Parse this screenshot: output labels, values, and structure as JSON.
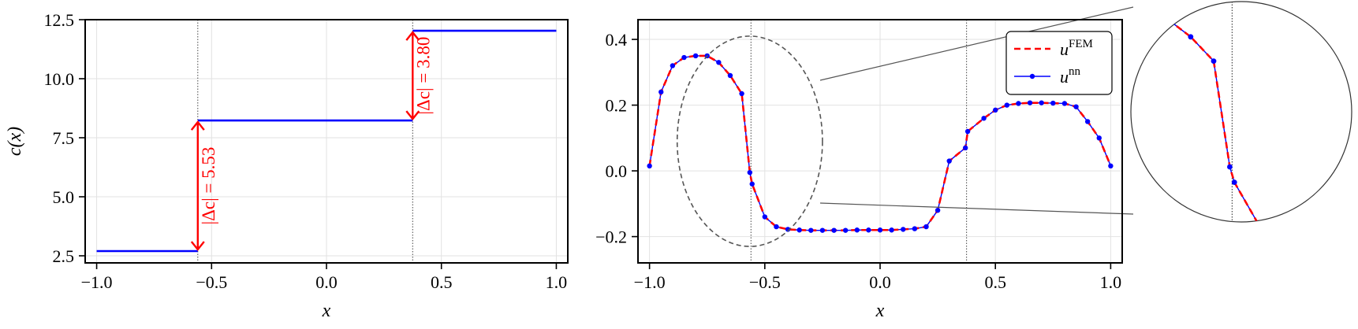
{
  "chart_data": [
    {
      "type": "line",
      "panel": "left",
      "xlabel": "x",
      "ylabel": "c(x)",
      "xlim": [
        -1.05,
        1.05
      ],
      "ylim": [
        2.2,
        12.5
      ],
      "xticks": [
        -1.0,
        -0.5,
        0.0,
        0.5,
        1.0
      ],
      "xtick_labels": [
        "−1.0",
        "−0.5",
        "0.0",
        "0.5",
        "1.0"
      ],
      "yticks": [
        2.5,
        5.0,
        7.5,
        10.0,
        12.5
      ],
      "ytick_labels": [
        "2.5",
        "5.0",
        "7.5",
        "10.0",
        "12.5"
      ],
      "grid": true,
      "interfaces": [
        -0.56,
        0.375
      ],
      "series": [
        {
          "color": "#0000ff",
          "segments": [
            {
              "x": [
                -1.0,
                -0.56
              ],
              "y": [
                2.7,
                2.7
              ]
            },
            {
              "x": [
                -0.56,
                0.375
              ],
              "y": [
                8.23,
                8.23
              ]
            },
            {
              "x": [
                0.375,
                1.0
              ],
              "y": [
                12.03,
                12.03
              ]
            }
          ]
        }
      ],
      "annotations": [
        {
          "text": "|Δc| = 5.53",
          "x": -0.56,
          "y_from": 2.7,
          "y_to": 8.23,
          "color": "#ff0000"
        },
        {
          "text": "|Δc| = 3.80",
          "x": 0.375,
          "y_from": 8.23,
          "y_to": 12.03,
          "color": "#ff0000"
        }
      ]
    },
    {
      "type": "line",
      "panel": "right",
      "xlabel": "x",
      "ylabel": "",
      "xlim": [
        -1.05,
        1.05
      ],
      "ylim": [
        -0.28,
        0.46
      ],
      "xticks": [
        -1.0,
        -0.5,
        0.0,
        0.5,
        1.0
      ],
      "xtick_labels": [
        "−1.0",
        "−0.5",
        "0.0",
        "0.5",
        "1.0"
      ],
      "yticks": [
        -0.2,
        0.0,
        0.2,
        0.4
      ],
      "ytick_labels": [
        "−0.2",
        "0.0",
        "0.2",
        "0.4"
      ],
      "grid": true,
      "interfaces": [
        -0.56,
        0.375
      ],
      "legend": {
        "position": "upper right"
      },
      "x": [
        -1.0,
        -0.95,
        -0.9,
        -0.85,
        -0.8,
        -0.75,
        -0.7,
        -0.65,
        -0.6,
        -0.565,
        -0.555,
        -0.5,
        -0.45,
        -0.4,
        -0.35,
        -0.3,
        -0.25,
        -0.2,
        -0.15,
        -0.1,
        -0.05,
        0.0,
        0.05,
        0.1,
        0.15,
        0.2,
        0.25,
        0.3,
        0.37,
        0.38,
        0.45,
        0.5,
        0.55,
        0.6,
        0.65,
        0.7,
        0.75,
        0.8,
        0.85,
        0.9,
        0.95,
        1.0
      ],
      "series": [
        {
          "name": "FEM",
          "label_base": "u",
          "label_sup": "FEM",
          "color": "#ff0000",
          "style": "dashed",
          "y": [
            0.015,
            0.24,
            0.32,
            0.345,
            0.35,
            0.35,
            0.33,
            0.29,
            0.235,
            -0.005,
            -0.04,
            -0.14,
            -0.17,
            -0.178,
            -0.18,
            -0.181,
            -0.181,
            -0.181,
            -0.181,
            -0.18,
            -0.18,
            -0.18,
            -0.18,
            -0.178,
            -0.176,
            -0.17,
            -0.12,
            0.03,
            0.07,
            0.12,
            0.16,
            0.185,
            0.2,
            0.205,
            0.207,
            0.207,
            0.206,
            0.205,
            0.195,
            0.15,
            0.1,
            0.015
          ]
        },
        {
          "name": "nn",
          "label_base": "u",
          "label_sup": "nn",
          "color": "#0000ff",
          "style": "solid-marker",
          "y": [
            0.015,
            0.24,
            0.32,
            0.345,
            0.35,
            0.35,
            0.33,
            0.29,
            0.235,
            -0.005,
            -0.04,
            -0.14,
            -0.17,
            -0.178,
            -0.18,
            -0.181,
            -0.181,
            -0.181,
            -0.181,
            -0.18,
            -0.18,
            -0.18,
            -0.18,
            -0.178,
            -0.176,
            -0.17,
            -0.12,
            0.03,
            0.07,
            0.12,
            0.16,
            0.185,
            0.2,
            0.205,
            0.207,
            0.207,
            0.206,
            0.205,
            0.195,
            0.15,
            0.1,
            0.015
          ]
        }
      ],
      "zoom": {
        "x_center": -0.56,
        "x_range": [
          -0.88,
          -0.25
        ],
        "y_range": [
          -0.23,
          0.41
        ]
      }
    }
  ]
}
